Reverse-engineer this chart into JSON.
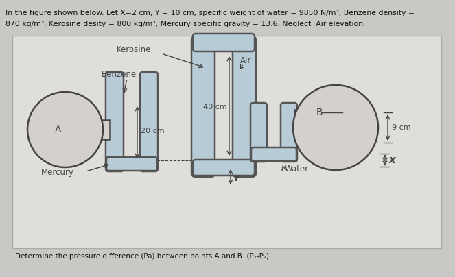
{
  "title_line1": "In the figure shown below. Let X=2 cm, Y = 10 cm, specific weight of water = 9850 N/m³, Benzene density =",
  "title_line2": "870 kg/m³, Kerosine desity = 800 kg/m³, Mercury specific gravity = 13.6. Neglect  Air elevation.",
  "bg_color": "#c8c8c4",
  "panel_bg": "#ddddd8",
  "tube_fill": "#b8ccd8",
  "tube_edge": "#555555",
  "label_kerosine": "Kerosine",
  "label_benzene": "Benzene",
  "label_air": "Air",
  "label_mercury": "Mercury",
  "label_water": "Water",
  "label_A": "A",
  "label_B": "B",
  "label_40cm": "40 cm",
  "label_20cm": "20 cm",
  "label_Y": "Y",
  "label_X": "X",
  "label_9cm": "9 cm",
  "bottom_text": "Determine the pressure difference (Pa) between points A and B. (P₂-P₂).",
  "line_color": "#444444",
  "circle_face": "#d4d0cc",
  "arrow_color": "#333333"
}
